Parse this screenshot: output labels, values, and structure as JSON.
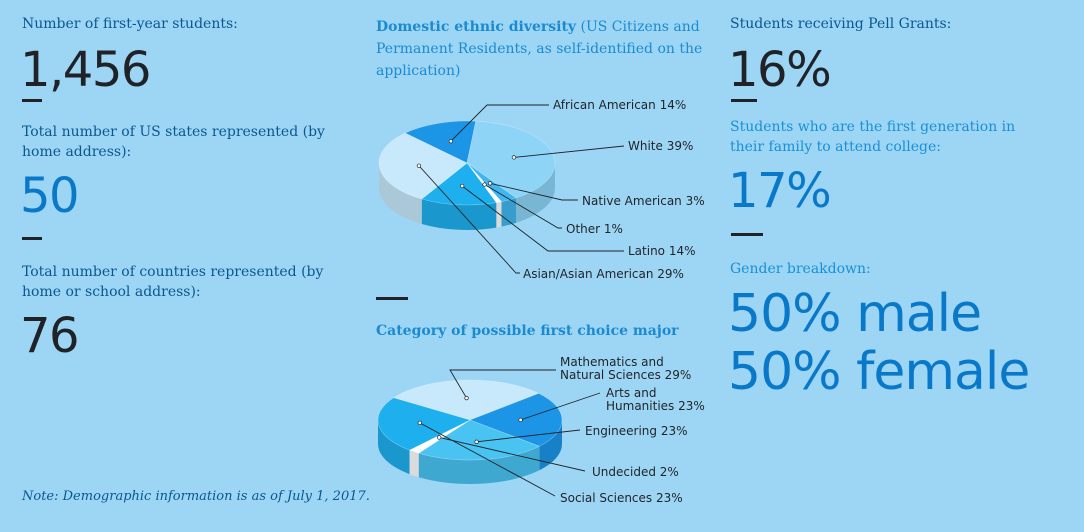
{
  "left": {
    "students_label": "Number of first-year students:",
    "students_value": "1,456",
    "states_label": "Total number of US states represented (by home address):",
    "states_value": "50",
    "countries_label": "Total number of countries represented (by home or school address):",
    "countries_value": "76",
    "note": "Note: Demographic information is as of July 1, 2017."
  },
  "right": {
    "pell_label": "Students receiving Pell Grants:",
    "pell_value": "16%",
    "firstgen_label": "Students who are the first generation in their family to attend college:",
    "firstgen_value": "17%",
    "gender_label": "Gender breakdown:",
    "gender_male": "50% male",
    "gender_female": "50% female"
  },
  "colors": {
    "background": "#9dd6f5",
    "deep_blue": "#0a78c8",
    "dark_text": "#1f2328"
  },
  "chart_data": [
    {
      "type": "pie",
      "title": "Domestic ethnic diversity",
      "subtitle": "(US Citizens and Permanent Residents, as self-identified on the application)",
      "slices": [
        {
          "name": "African American",
          "value": 14,
          "label": "African American 14%",
          "color": "#1c95e6"
        },
        {
          "name": "White",
          "value": 39,
          "label": "White 39%",
          "color": "#8dd4f7"
        },
        {
          "name": "Native American",
          "value": 3,
          "label": "Native American 3%",
          "color": "#3fb7ee"
        },
        {
          "name": "Other",
          "value": 1,
          "label": "Other 1%",
          "color": "#ffffff"
        },
        {
          "name": "Latino",
          "value": 14,
          "label": "Latino 14%",
          "color": "#1eb0ee"
        },
        {
          "name": "Asian/Asian American",
          "value": 29,
          "label": "Asian/Asian American 29%",
          "color": "#c7e9fb"
        }
      ]
    },
    {
      "type": "pie",
      "title": "Category of possible first choice major",
      "slices": [
        {
          "name": "Mathematics and Natural Sciences",
          "value": 29,
          "label": [
            "Mathematics and",
            "Natural Sciences 29%"
          ],
          "color": "#c7e9fb"
        },
        {
          "name": "Arts and Humanities",
          "value": 23,
          "label": [
            "Arts and",
            "Humanities 23%"
          ],
          "color": "#1c95e6"
        },
        {
          "name": "Engineering",
          "value": 23,
          "label": [
            "Engineering 23%"
          ],
          "color": "#49c3f2"
        },
        {
          "name": "Undecided",
          "value": 2,
          "label": [
            "Undecided 2%"
          ],
          "color": "#ffffff"
        },
        {
          "name": "Social Sciences",
          "value": 23,
          "label": [
            "Social Sciences 23%"
          ],
          "color": "#1eb0ee"
        }
      ]
    }
  ]
}
